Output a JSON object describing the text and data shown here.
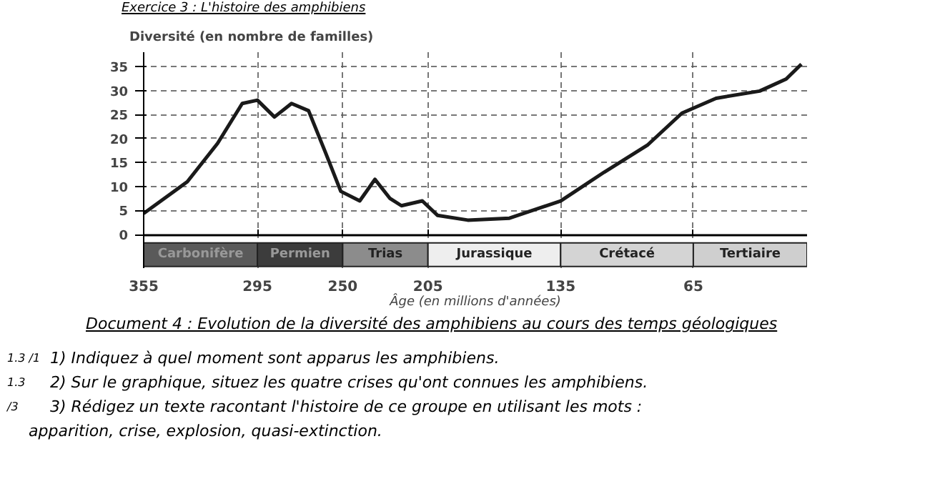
{
  "chart_data": {
    "type": "line",
    "title": "Exercice 3 : L'histoire des amphibiens",
    "ylabel": "Diversité (en nombre de familles)",
    "xlabel": "Âge (en millions d'années)",
    "x": [
      355,
      332,
      316,
      303,
      295,
      286,
      277,
      268,
      259,
      251,
      241,
      233,
      225,
      219,
      208,
      200,
      184,
      162,
      135,
      112,
      89,
      71,
      53,
      30,
      16,
      8
    ],
    "series": [
      {
        "color": "#1a1a1a",
        "values": [
          4.4,
          11,
          19,
          27.3,
          28,
          24.5,
          27.3,
          25.8,
          17,
          9,
          7,
          11.5,
          7.5,
          6,
          7,
          4,
          3,
          3.4,
          7,
          13,
          18.7,
          25.3,
          28.4,
          29.9,
          32.4,
          35.5
        ]
      }
    ],
    "xlim": [
      355,
      5
    ],
    "xticks": [
      355,
      295,
      250,
      205,
      135,
      65
    ],
    "ylim": [
      -7,
      38
    ],
    "yticks": [
      0,
      5,
      10,
      15,
      20,
      25,
      30,
      35
    ],
    "grid": true,
    "marker": "none",
    "line_style": "solid",
    "bands": [
      {
        "axis": "x",
        "from": 355,
        "to": 295,
        "label": "Carbonifère",
        "color": "#5a5a5a"
      },
      {
        "axis": "x",
        "from": 295,
        "to": 250,
        "label": "Permien",
        "color": "#3c3c3c"
      },
      {
        "axis": "x",
        "from": 250,
        "to": 205,
        "label": "Trias",
        "color": "#8c8c8c"
      },
      {
        "axis": "x",
        "from": 205,
        "to": 135,
        "label": "Jurassique",
        "color": "#eeeeee"
      },
      {
        "axis": "x",
        "from": 135,
        "to": 65,
        "label": "Crétacé",
        "color": "#d4d4d4"
      },
      {
        "axis": "x",
        "from": 65,
        "to": 5,
        "label": "Tertiaire",
        "color": "#cfcfcf"
      }
    ],
    "annotations": [
      "Document 4 : Evolution de la diversité des amphibiens au cours des temps géologiques",
      "1.3 /1",
      "1) Indiquez à quel moment sont apparus les amphibiens.",
      "1.3",
      "2) Sur le graphique, situez les quatre crises qu'ont connues les amphibiens.",
      "/3",
      "3) Rédigez un texte racontant l'histoire de ce groupe en utilisant les mots :",
      "apparition, crise, explosion, quasi-extinction."
    ]
  }
}
